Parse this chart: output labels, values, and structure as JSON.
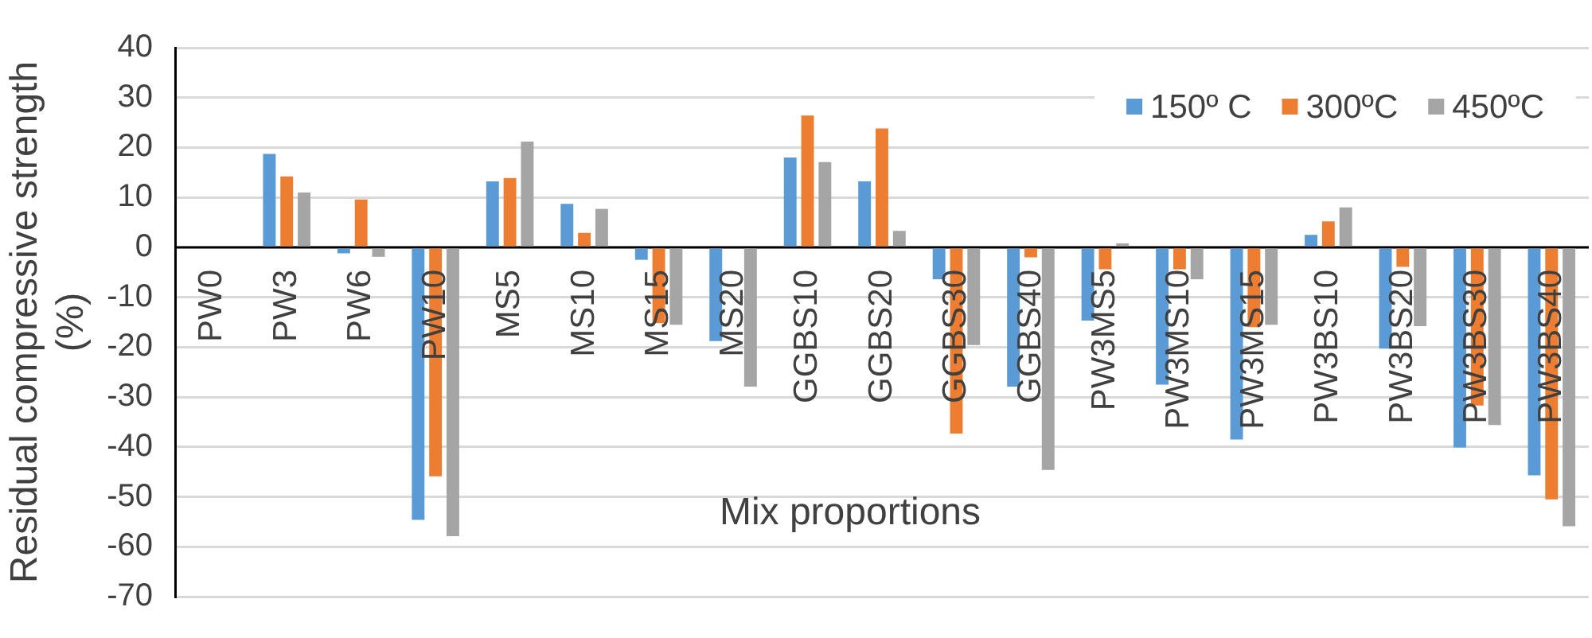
{
  "chart_data": {
    "type": "bar",
    "xlabel": "Mix proportions",
    "ylabel": "Residual compressive strength (%)",
    "categories": [
      "PW0",
      "PW3",
      "PW6",
      "PW10",
      "MS5",
      "MS10",
      "MS15",
      "MS20",
      "GGBS10",
      "GGBS20",
      "GGBS30",
      "GGBS40",
      "PW3MS5",
      "PW3MS10",
      "PW3MS15",
      "PW3BS10",
      "PW3BS20",
      "PW3BS30",
      "PW3BS40"
    ],
    "series": [
      {
        "name": "150º C",
        "color": "#5b9bd5",
        "values": [
          0,
          18.7,
          -1.2,
          -54.6,
          13.2,
          8.7,
          -2.5,
          -18.8,
          18.0,
          13.2,
          -6.4,
          -27.9,
          -14.7,
          -27.5,
          -38.5,
          2.5,
          -20.3,
          -40.1,
          -45.7
        ]
      },
      {
        "name": "300ºC",
        "color": "#ed7d31",
        "values": [
          0,
          14.2,
          9.6,
          -45.9,
          13.9,
          2.9,
          -15.2,
          0,
          26.4,
          23.8,
          -37.3,
          -2.0,
          -4.4,
          -4.4,
          -16.0,
          5.2,
          -3.9,
          -31.7,
          -50.5
        ]
      },
      {
        "name": "450ºC",
        "color": "#a5a5a5",
        "values": [
          0,
          11.0,
          -1.9,
          -57.9,
          21.2,
          7.7,
          -15.5,
          -27.9,
          17.1,
          3.3,
          -19.6,
          -44.6,
          0.8,
          -6.4,
          -15.5,
          8.0,
          -15.8,
          -35.6,
          -55.9
        ]
      }
    ],
    "ylim": [
      -70,
      40
    ],
    "yticks": [
      -70,
      -60,
      -50,
      -40,
      -30,
      -20,
      -10,
      0,
      10,
      20,
      30,
      40
    ],
    "grid": "y",
    "legend": "top right"
  }
}
